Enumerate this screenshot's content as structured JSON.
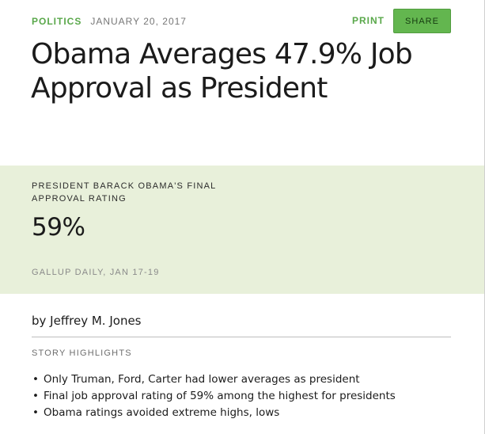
{
  "header": {
    "category": "POLITICS",
    "date": "JANUARY 20, 2017",
    "print_label": "PRINT",
    "share_label": "SHARE"
  },
  "article": {
    "headline": "Obama Averages 47.9% Job Approval as President",
    "byline": "by Jeffrey M. Jones"
  },
  "rating_panel": {
    "label": "PRESIDENT BARACK OBAMA'S FINAL APPROVAL RATING",
    "value": "59%",
    "source": "GALLUP DAILY, JAN 17-19"
  },
  "highlights": {
    "title": "STORY HIGHLIGHTS",
    "items": [
      "Only Truman, Ford, Carter had lower averages as president",
      "Final job approval rating of 59% among the highest for presidents",
      "Obama ratings avoided extreme highs, lows"
    ]
  },
  "colors": {
    "accent_green": "#5aa84b",
    "share_button_bg": "#63b64f",
    "panel_bg": "#e8f0da"
  }
}
